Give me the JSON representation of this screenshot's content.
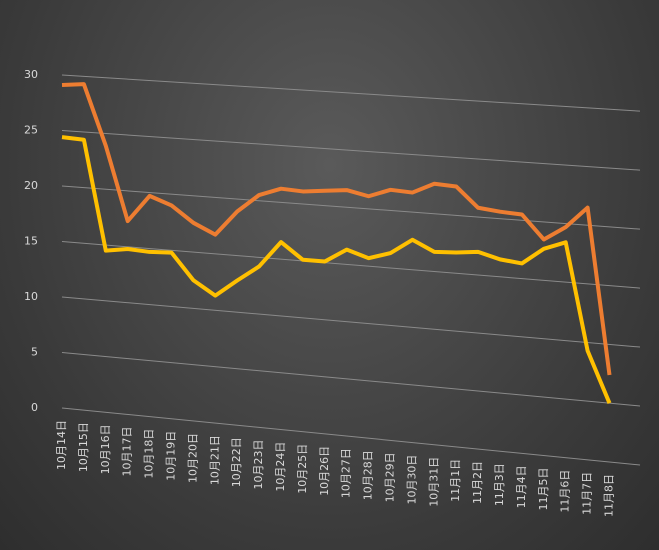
{
  "chart_data": {
    "type": "line",
    "categories": [
      "10月14日",
      "10月15日",
      "10月16日",
      "10月17日",
      "10月18日",
      "10月19日",
      "10月20日",
      "10月21日",
      "10月22日",
      "10月23日",
      "10月24日",
      "10月25日",
      "10月26日",
      "10月27日",
      "10月28日",
      "10月29日",
      "10月30日",
      "10月31日",
      "11月1日",
      "11月2日",
      "11月3日",
      "11月4日",
      "11月5日",
      "11月6日",
      "11月7日",
      "11月8日"
    ],
    "series": [
      {
        "color": "#ed7d31",
        "values": [
          29.1,
          29.3,
          23.9,
          17.3,
          19.7,
          19.0,
          17.6,
          16.7,
          18.9,
          20.5,
          21.2,
          21.1,
          21.3,
          21.5,
          21.1,
          21.8,
          21.7,
          22.6,
          22.5,
          20.8,
          20.6,
          20.5,
          18.5,
          19.7,
          21.5,
          7.4
        ]
      },
      {
        "color": "#ffc000",
        "values": [
          24.4,
          24.3,
          14.5,
          14.8,
          14.7,
          14.8,
          12.5,
          11.3,
          12.8,
          14.2,
          16.5,
          15.1,
          15.1,
          16.3,
          15.7,
          16.3,
          17.6,
          16.7,
          16.8,
          17.0,
          16.5,
          16.3,
          17.7,
          18.4,
          9.3,
          5.0
        ]
      }
    ],
    "ylim": [
      0,
      30
    ],
    "yticks": [
      0,
      5,
      10,
      15,
      20,
      25,
      30
    ],
    "grid": true
  }
}
